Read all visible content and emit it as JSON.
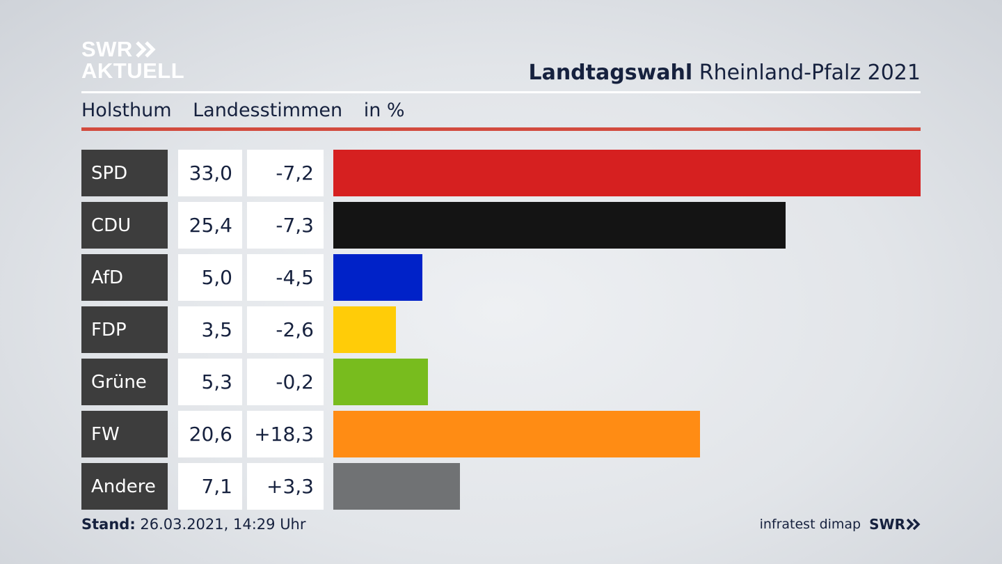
{
  "brand": {
    "logo_line1": "SWR",
    "logo_line2": "AKTUELL"
  },
  "header": {
    "title_bold": "Landtagswahl",
    "title_rest": "Rheinland-Pfalz 2021"
  },
  "subtitle": {
    "place": "Holsthum",
    "measure": "Landesstimmen",
    "unit": "in %"
  },
  "footer": {
    "stand_label": "Stand:",
    "stand_value": "26.03.2021, 14:29 Uhr",
    "source": "infratest dimap",
    "broadcaster": "SWR"
  },
  "chart_data": {
    "type": "bar",
    "orientation": "horizontal",
    "title": "Landtagswahl Rheinland-Pfalz 2021",
    "subtitle": "Holsthum Landesstimmen in %",
    "categories": [
      "SPD",
      "CDU",
      "AfD",
      "FDP",
      "Grüne",
      "FW",
      "Andere"
    ],
    "values": [
      33.0,
      25.4,
      5.0,
      3.5,
      5.3,
      20.6,
      7.1
    ],
    "value_labels": [
      "33,0",
      "25,4",
      "5,0",
      "3,5",
      "5,3",
      "20,6",
      "7,1"
    ],
    "diff_labels": [
      "-7,2",
      "-7,3",
      "-4,5",
      "-2,6",
      "-0,2",
      "+18,3",
      "+3,3"
    ],
    "colors": [
      "#d62020",
      "#141414",
      "#0022c8",
      "#ffcc08",
      "#78bc1e",
      "#ff8c14",
      "#707274"
    ],
    "xlim": [
      0,
      33.0
    ]
  }
}
